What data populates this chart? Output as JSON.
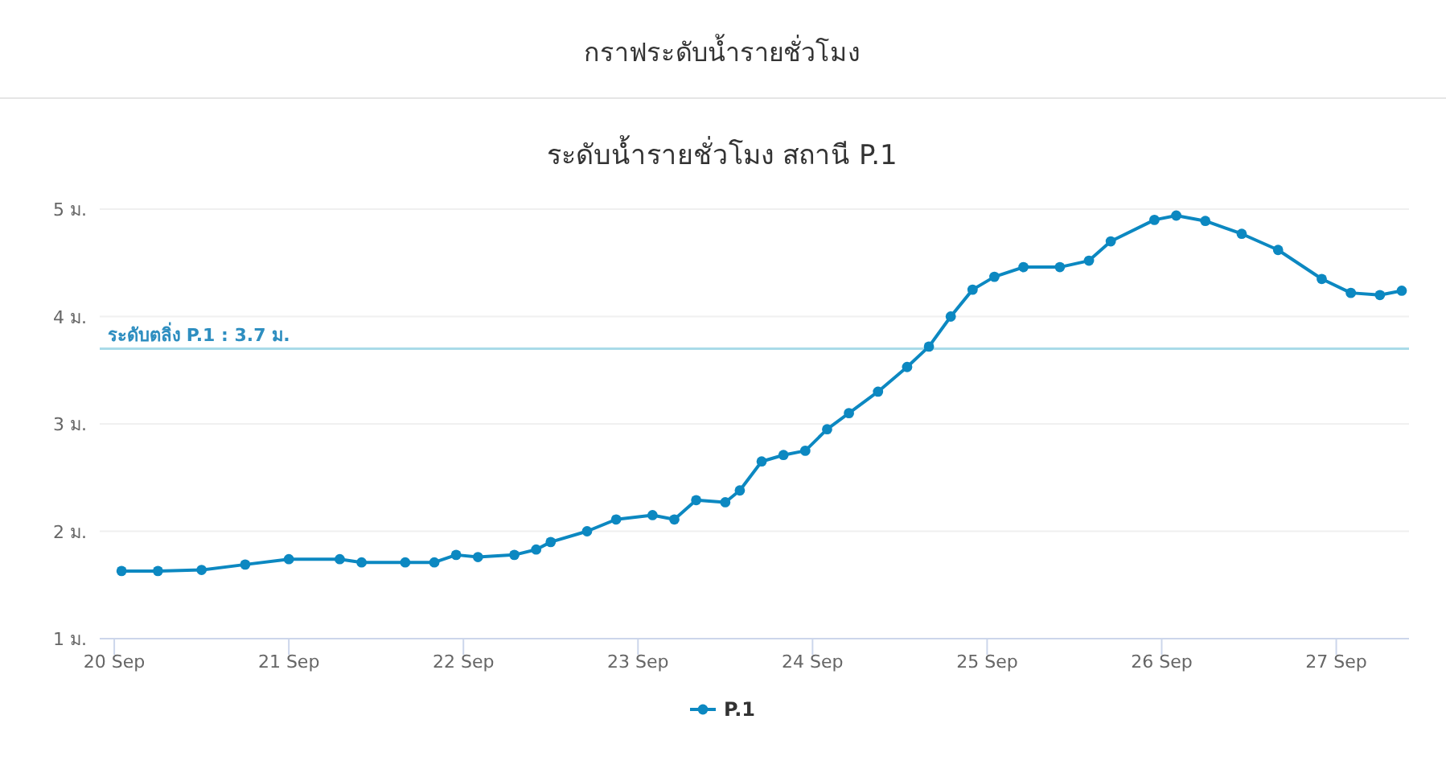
{
  "chart_data": {
    "type": "line",
    "title": "กราฟระดับน้ำรายชั่วโมง",
    "subtitle": "ระดับน้ำรายชั่วโมง สถานี P.1",
    "xlim": [
      "--09-19T22:00",
      "--09-27T10:00"
    ],
    "xticks": [
      {
        "value": "--09-20",
        "label": "20 Sep"
      },
      {
        "value": "--09-21",
        "label": "21 Sep"
      },
      {
        "value": "--09-22",
        "label": "22 Sep"
      },
      {
        "value": "--09-23",
        "label": "23 Sep"
      },
      {
        "value": "--09-24",
        "label": "24 Sep"
      },
      {
        "value": "--09-25",
        "label": "25 Sep"
      },
      {
        "value": "--09-26",
        "label": "26 Sep"
      },
      {
        "value": "--09-27",
        "label": "27 Sep"
      }
    ],
    "ylim": [
      1,
      5
    ],
    "yticks": [
      {
        "value": 1,
        "label": "1 ม."
      },
      {
        "value": 2,
        "label": "2 ม."
      },
      {
        "value": 3,
        "label": "3 ม."
      },
      {
        "value": 4,
        "label": "4 ม."
      },
      {
        "value": 5,
        "label": "5 ม."
      }
    ],
    "grid": "y",
    "legend": "bottom",
    "marker": "circle",
    "ref_lines": [
      {
        "axis": "y",
        "value": 3.7,
        "label": "ระดับตลิ่ง P.1 : 3.7 ม.",
        "color": "#a9dbe9"
      }
    ],
    "series": [
      {
        "name": "P.1",
        "color": "#0c88c1",
        "x": [
          "--09-20T01:00",
          "--09-20T06:00",
          "--09-20T12:00",
          "--09-20T18:00",
          "--09-21T00:00",
          "--09-21T07:00",
          "--09-21T10:00",
          "--09-21T16:00",
          "--09-21T20:00",
          "--09-21T23:00",
          "--09-22T02:00",
          "--09-22T07:00",
          "--09-22T10:00",
          "--09-22T12:00",
          "--09-22T17:00",
          "--09-22T21:00",
          "--09-23T02:00",
          "--09-23T05:00",
          "--09-23T08:00",
          "--09-23T12:00",
          "--09-23T14:00",
          "--09-23T17:00",
          "--09-23T20:00",
          "--09-23T23:00",
          "--09-24T02:00",
          "--09-24T05:00",
          "--09-24T09:00",
          "--09-24T13:00",
          "--09-24T16:00",
          "--09-24T19:00",
          "--09-24T22:00",
          "--09-25T01:00",
          "--09-25T05:00",
          "--09-25T10:00",
          "--09-25T14:00",
          "--09-25T17:00",
          "--09-25T23:00",
          "--09-26T02:00",
          "--09-26T06:00",
          "--09-26T11:00",
          "--09-26T16:00",
          "--09-26T22:00",
          "--09-27T02:00",
          "--09-27T06:00",
          "--09-27T09:00"
        ],
        "values": [
          1.63,
          1.63,
          1.64,
          1.69,
          1.74,
          1.74,
          1.71,
          1.71,
          1.71,
          1.78,
          1.76,
          1.78,
          1.83,
          1.9,
          2.0,
          2.11,
          2.15,
          2.11,
          2.29,
          2.27,
          2.38,
          2.65,
          2.71,
          2.75,
          2.95,
          3.1,
          3.3,
          3.53,
          3.72,
          4.0,
          4.25,
          4.37,
          4.46,
          4.46,
          4.52,
          4.7,
          4.9,
          4.94,
          4.89,
          4.77,
          4.62,
          4.35,
          4.22,
          4.2,
          4.24
        ]
      }
    ]
  }
}
